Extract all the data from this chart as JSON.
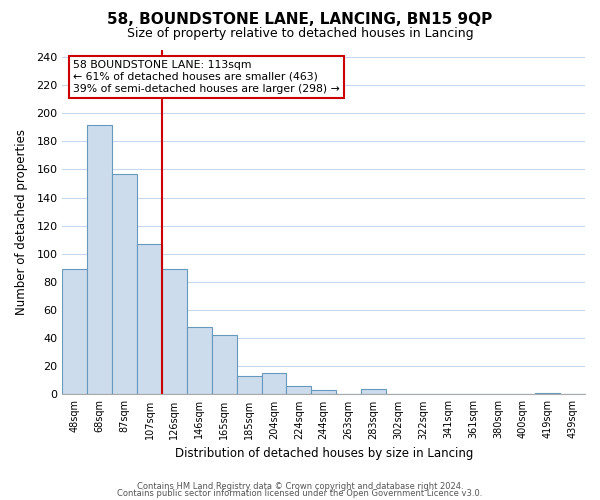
{
  "title": "58, BOUNDSTONE LANE, LANCING, BN15 9QP",
  "subtitle": "Size of property relative to detached houses in Lancing",
  "xlabel": "Distribution of detached houses by size in Lancing",
  "ylabel": "Number of detached properties",
  "bar_labels": [
    "48sqm",
    "68sqm",
    "87sqm",
    "107sqm",
    "126sqm",
    "146sqm",
    "165sqm",
    "185sqm",
    "204sqm",
    "224sqm",
    "244sqm",
    "263sqm",
    "283sqm",
    "302sqm",
    "322sqm",
    "341sqm",
    "361sqm",
    "380sqm",
    "400sqm",
    "419sqm",
    "439sqm"
  ],
  "bar_heights": [
    89,
    192,
    157,
    107,
    89,
    48,
    42,
    13,
    15,
    6,
    3,
    0,
    4,
    0,
    0,
    0,
    0,
    0,
    0,
    1,
    0
  ],
  "bar_color": "#ccdcec",
  "bar_edge_color": "#6699bb",
  "vline_x": 4.0,
  "vline_color": "#cc0000",
  "annotation_text": "58 BOUNDSTONE LANE: 113sqm\n← 61% of detached houses are smaller (463)\n39% of semi-detached houses are larger (298) →",
  "annotation_box_color": "#ffffff",
  "annotation_box_edge": "#cc0000",
  "ylim": [
    0,
    245
  ],
  "yticks": [
    0,
    20,
    40,
    60,
    80,
    100,
    120,
    140,
    160,
    180,
    200,
    220,
    240
  ],
  "footer_line1": "Contains HM Land Registry data © Crown copyright and database right 2024.",
  "footer_line2": "Contains public sector information licensed under the Open Government Licence v3.0.",
  "bg_color": "#ffffff",
  "grid_color": "#c8d8ec"
}
